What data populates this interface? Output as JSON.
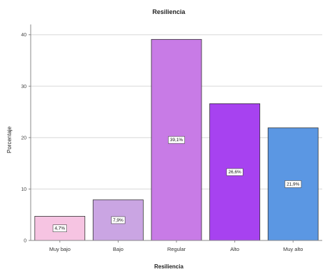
{
  "chart_data": {
    "type": "bar",
    "title": "Resiliencia",
    "xlabel": "Resiliencia",
    "ylabel": "Porcentaje",
    "categories": [
      "Muy bajo",
      "Bajo",
      "Regular",
      "Alto",
      "Muy alto"
    ],
    "values": [
      4.7,
      7.9,
      39.1,
      26.6,
      21.9
    ],
    "data_labels": [
      "4,7%",
      "7,9%",
      "39,1%",
      "26,6%",
      "21,9%"
    ],
    "colors": [
      "#f6c4e2",
      "#caa5e3",
      "#c87be6",
      "#a742f0",
      "#5b97e3"
    ],
    "ylim": [
      0,
      42
    ],
    "yticks": [
      0,
      10,
      20,
      30,
      40
    ],
    "grid": true,
    "legend": "none"
  }
}
